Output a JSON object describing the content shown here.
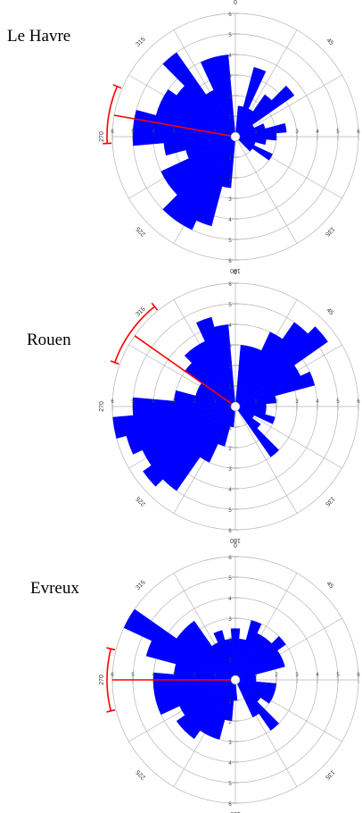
{
  "colors": {
    "bars": "#0000ff",
    "mean": "#ff0000",
    "grid": "#b4b4b4"
  },
  "chart_data": [
    {
      "type": "rose",
      "title": "Le Havre",
      "bin_width_deg": 10,
      "rmax": 6,
      "ring_ticks": [
        "1",
        "2",
        "3",
        "4",
        "5",
        "6"
      ],
      "angle_labels": [
        {
          "angle": 0,
          "text": "0"
        },
        {
          "angle": 45,
          "text": "45"
        },
        {
          "angle": 90,
          "text": "90"
        },
        {
          "angle": 135,
          "text": "135"
        },
        {
          "angle": 180,
          "text": "180"
        },
        {
          "angle": 225,
          "text": "225"
        },
        {
          "angle": 270,
          "text": "270"
        },
        {
          "angle": 315,
          "text": "315"
        }
      ],
      "bins_deg": [
        0,
        10,
        20,
        30,
        40,
        50,
        60,
        70,
        80,
        90,
        100,
        110,
        120,
        130,
        140,
        150,
        160,
        170,
        180,
        190,
        200,
        210,
        220,
        230,
        240,
        250,
        260,
        270,
        280,
        290,
        300,
        310,
        320,
        330,
        340,
        350
      ],
      "values": [
        0,
        1.5,
        3.5,
        1.5,
        2.5,
        3.5,
        1,
        1.5,
        2.5,
        2,
        1.5,
        1,
        2,
        1,
        0,
        0,
        0,
        0,
        0,
        2.5,
        4.5,
        5,
        5,
        4,
        4,
        2.5,
        3.5,
        5,
        5,
        4,
        4,
        3.5,
        5,
        2.5,
        4,
        4
      ],
      "mean_direction": 280,
      "confidence_arc": [
        267,
        293
      ]
    },
    {
      "type": "rose",
      "title": "Rouen",
      "bin_width_deg": 10,
      "rmax": 6,
      "ring_ticks": [
        "1",
        "2",
        "3",
        "4",
        "5",
        "6"
      ],
      "angle_labels": [
        {
          "angle": 0,
          "text": "0"
        },
        {
          "angle": 45,
          "text": "45"
        },
        {
          "angle": 90,
          "text": "90"
        },
        {
          "angle": 135,
          "text": "135"
        },
        {
          "angle": 180,
          "text": "180"
        },
        {
          "angle": 225,
          "text": "225"
        },
        {
          "angle": 270,
          "text": "270"
        },
        {
          "angle": 315,
          "text": "315"
        }
      ],
      "bins_deg": [
        0,
        10,
        20,
        30,
        40,
        50,
        60,
        70,
        80,
        90,
        100,
        110,
        120,
        130,
        140,
        150,
        160,
        170,
        180,
        190,
        200,
        210,
        220,
        230,
        240,
        250,
        260,
        270,
        280,
        290,
        300,
        310,
        320,
        330,
        340,
        350
      ],
      "values": [
        0,
        3,
        3,
        4,
        5,
        5.5,
        3.5,
        4,
        2,
        1.5,
        1.5,
        2,
        1,
        1.5,
        3,
        0,
        0,
        0,
        0,
        1,
        2,
        3,
        5,
        5.5,
        5,
        5.5,
        6,
        5,
        3,
        2,
        2,
        3,
        3.5,
        3.5,
        4.5,
        4
      ],
      "mean_direction": 305,
      "confidence_arc": [
        290,
        321
      ]
    },
    {
      "type": "rose",
      "title": "Evreux",
      "bin_width_deg": 10,
      "rmax": 6,
      "ring_ticks": [
        "1",
        "2",
        "3",
        "4",
        "5",
        "6"
      ],
      "angle_labels": [
        {
          "angle": 0,
          "text": "0"
        },
        {
          "angle": 45,
          "text": "45"
        },
        {
          "angle": 90,
          "text": "90"
        },
        {
          "angle": 135,
          "text": "135"
        },
        {
          "angle": 180,
          "text": "180"
        },
        {
          "angle": 225,
          "text": "225"
        },
        {
          "angle": 270,
          "text": "270"
        },
        {
          "angle": 315,
          "text": "315"
        }
      ],
      "bins_deg": [
        0,
        10,
        20,
        30,
        40,
        50,
        60,
        70,
        80,
        90,
        100,
        110,
        120,
        130,
        140,
        150,
        160,
        170,
        180,
        190,
        200,
        210,
        220,
        230,
        240,
        250,
        260,
        270,
        280,
        290,
        300,
        310,
        320,
        330,
        340,
        350
      ],
      "values": [
        2.5,
        2,
        3,
        2.5,
        2.5,
        3,
        2.5,
        2.5,
        1,
        1,
        2,
        2,
        2,
        1.5,
        3,
        2,
        0,
        0,
        1,
        2,
        3,
        3,
        3.5,
        3.5,
        3,
        4,
        4,
        4,
        3,
        4.5,
        6,
        3.5,
        3.5,
        2,
        2.5,
        2
      ],
      "mean_direction": 270,
      "confidence_arc": [
        256,
        284
      ]
    }
  ]
}
